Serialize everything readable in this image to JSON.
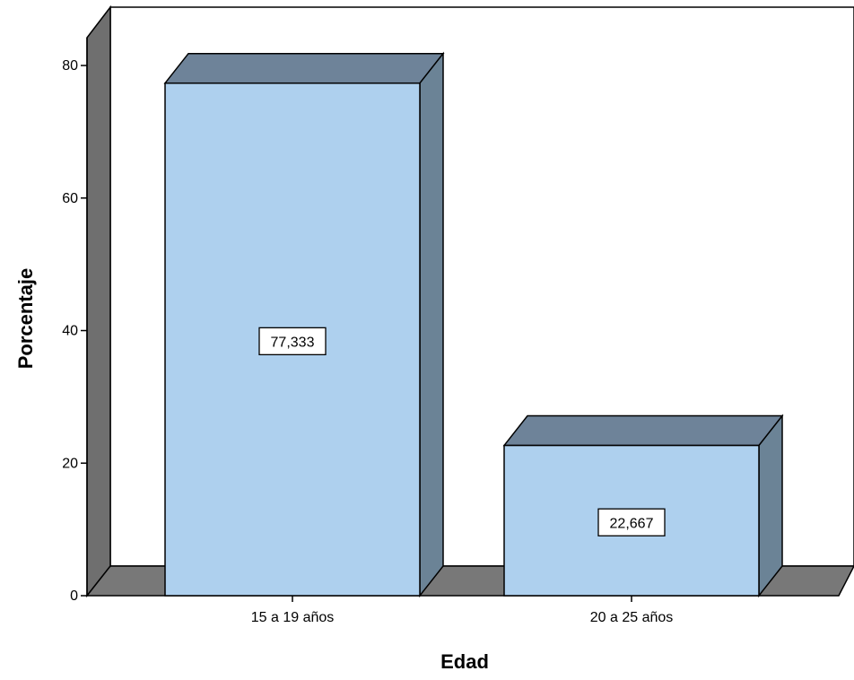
{
  "chart_data": {
    "type": "bar",
    "categories": [
      "15 a 19 años",
      "20 a 25 años"
    ],
    "values": [
      77.333,
      22.667
    ],
    "data_labels": [
      "77,333",
      "22,667"
    ],
    "xlabel": "Edad",
    "ylabel": "Porcentaje",
    "ylim": [
      0,
      80
    ],
    "yticks": [
      "0",
      "20",
      "40",
      "60",
      "80"
    ],
    "grid": false,
    "legend": "none",
    "style": "3d",
    "colors": {
      "bar_front": "#aed0ee",
      "bar_top": "#6e8399",
      "bar_side": "#6b8396",
      "floor": "#787878",
      "back_wall": "#ffffff",
      "left_wall": "#6f6f6f",
      "outline": "#000000"
    }
  }
}
